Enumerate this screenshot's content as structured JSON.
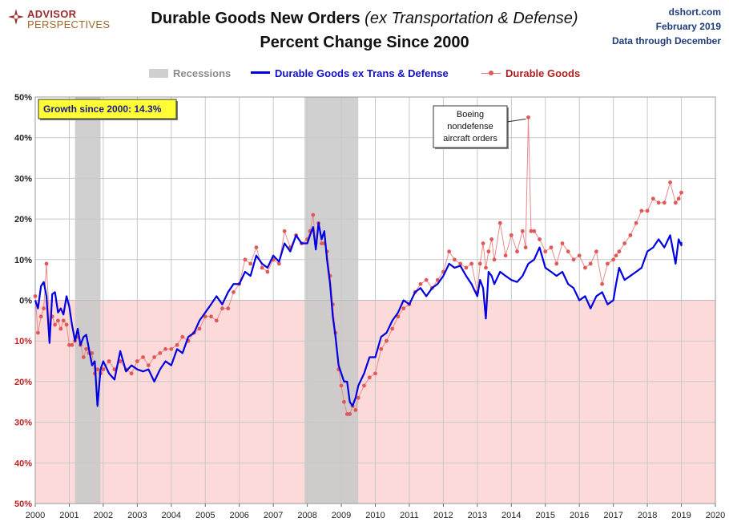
{
  "header": {
    "logo_top": "ADVISOR",
    "logo_bottom": "PERSPECTIVES",
    "title_main": "Durable Goods New Orders",
    "title_italic": "(ex Transportation & Defense)",
    "subtitle": "Percent Change Since 2000",
    "site": "dshort.com",
    "date": "February 2019",
    "data_through": "Data through December"
  },
  "legend": {
    "recessions": "Recessions",
    "series1": "Durable Goods ex Trans & Defense",
    "series2": "Durable Goods"
  },
  "colors": {
    "series1": "#0000e0",
    "series2": "#e05858",
    "recession": "#c8c8c8",
    "negative_bg": "#fddada"
  },
  "chart_data": {
    "type": "line",
    "x_unit": "year",
    "xlim": [
      2000,
      2020
    ],
    "ylim": [
      -50,
      50
    ],
    "x_ticks": [
      2000,
      2001,
      2002,
      2003,
      2004,
      2005,
      2006,
      2007,
      2008,
      2009,
      2010,
      2011,
      2012,
      2013,
      2014,
      2015,
      2016,
      2017,
      2018,
      2019,
      2020
    ],
    "x_tick_labels": [
      "2000",
      "2001",
      "2002",
      "2003",
      "2004",
      "2005",
      "2006",
      "2007",
      "2008",
      "2009",
      "2010",
      "2011",
      "2012",
      "2013",
      "2014",
      "2015",
      "2016",
      "2017",
      "2018",
      "2019",
      "2020"
    ],
    "y_ticks": [
      50,
      40,
      30,
      20,
      10,
      0,
      -10,
      -20,
      -30,
      -40,
      -50
    ],
    "y_tick_labels": [
      "50%",
      "40%",
      "30%",
      "20%",
      "10%",
      "0%",
      "10%",
      "20%",
      "30%",
      "40%",
      "50%"
    ],
    "grid": true,
    "legend_position": "top-center",
    "recessions": [
      [
        2001.17,
        2001.92
      ],
      [
        2007.92,
        2009.5
      ]
    ],
    "annotation_box": "Growth since 2000:  14.3%",
    "callout": {
      "text": [
        "Boeing",
        "nondefense",
        "aircraft orders"
      ],
      "x": 2014.5,
      "y": 45
    },
    "series": [
      {
        "name": "Durable Goods ex Trans & Defense",
        "points": [
          [
            2000.0,
            0
          ],
          [
            2000.08,
            -2
          ],
          [
            2000.17,
            3.5
          ],
          [
            2000.25,
            4.5
          ],
          [
            2000.33,
            1
          ],
          [
            2000.42,
            -10.5
          ],
          [
            2000.5,
            1.5
          ],
          [
            2000.58,
            2
          ],
          [
            2000.67,
            -3
          ],
          [
            2000.75,
            -2
          ],
          [
            2000.83,
            -3.5
          ],
          [
            2000.92,
            1
          ],
          [
            2001.0,
            -1.5
          ],
          [
            2001.08,
            -6
          ],
          [
            2001.17,
            -10
          ],
          [
            2001.25,
            -7
          ],
          [
            2001.33,
            -11
          ],
          [
            2001.42,
            -9
          ],
          [
            2001.5,
            -8.5
          ],
          [
            2001.58,
            -12
          ],
          [
            2001.67,
            -16
          ],
          [
            2001.75,
            -15
          ],
          [
            2001.83,
            -26
          ],
          [
            2001.92,
            -17
          ],
          [
            2002.0,
            -15
          ],
          [
            2002.17,
            -18
          ],
          [
            2002.33,
            -19.5
          ],
          [
            2002.5,
            -12.5
          ],
          [
            2002.67,
            -17.5
          ],
          [
            2002.83,
            -16
          ],
          [
            2003.0,
            -17
          ],
          [
            2003.17,
            -17.5
          ],
          [
            2003.33,
            -17
          ],
          [
            2003.5,
            -20
          ],
          [
            2003.67,
            -17
          ],
          [
            2003.83,
            -15
          ],
          [
            2004.0,
            -16
          ],
          [
            2004.17,
            -12
          ],
          [
            2004.33,
            -13
          ],
          [
            2004.5,
            -9
          ],
          [
            2004.67,
            -8
          ],
          [
            2004.83,
            -5
          ],
          [
            2005.0,
            -3
          ],
          [
            2005.17,
            -1
          ],
          [
            2005.33,
            1
          ],
          [
            2005.5,
            -1
          ],
          [
            2005.67,
            2
          ],
          [
            2005.83,
            4
          ],
          [
            2006.0,
            4
          ],
          [
            2006.17,
            7
          ],
          [
            2006.33,
            6
          ],
          [
            2006.5,
            11
          ],
          [
            2006.67,
            9
          ],
          [
            2006.83,
            8
          ],
          [
            2007.0,
            11
          ],
          [
            2007.17,
            9.5
          ],
          [
            2007.33,
            14
          ],
          [
            2007.5,
            12
          ],
          [
            2007.67,
            16
          ],
          [
            2007.83,
            14
          ],
          [
            2008.0,
            14
          ],
          [
            2008.08,
            16
          ],
          [
            2008.17,
            18
          ],
          [
            2008.25,
            12.5
          ],
          [
            2008.33,
            19
          ],
          [
            2008.42,
            15
          ],
          [
            2008.5,
            17
          ],
          [
            2008.58,
            10
          ],
          [
            2008.67,
            4
          ],
          [
            2008.75,
            -4
          ],
          [
            2008.83,
            -9
          ],
          [
            2008.92,
            -16
          ],
          [
            2009.0,
            -18
          ],
          [
            2009.08,
            -20
          ],
          [
            2009.17,
            -20
          ],
          [
            2009.25,
            -25
          ],
          [
            2009.33,
            -26
          ],
          [
            2009.42,
            -24
          ],
          [
            2009.5,
            -21
          ],
          [
            2009.67,
            -18
          ],
          [
            2009.83,
            -14
          ],
          [
            2010.0,
            -14
          ],
          [
            2010.17,
            -9
          ],
          [
            2010.33,
            -8
          ],
          [
            2010.5,
            -5
          ],
          [
            2010.67,
            -3
          ],
          [
            2010.83,
            0
          ],
          [
            2011.0,
            -1
          ],
          [
            2011.17,
            2
          ],
          [
            2011.33,
            3
          ],
          [
            2011.5,
            1
          ],
          [
            2011.67,
            3
          ],
          [
            2011.83,
            4
          ],
          [
            2012.0,
            6
          ],
          [
            2012.17,
            9
          ],
          [
            2012.33,
            8
          ],
          [
            2012.5,
            8.5
          ],
          [
            2012.67,
            6
          ],
          [
            2012.83,
            4
          ],
          [
            2013.0,
            1
          ],
          [
            2013.08,
            5
          ],
          [
            2013.17,
            3
          ],
          [
            2013.25,
            -4.5
          ],
          [
            2013.33,
            7
          ],
          [
            2013.42,
            6
          ],
          [
            2013.5,
            4
          ],
          [
            2013.67,
            7
          ],
          [
            2013.83,
            6
          ],
          [
            2014.0,
            5
          ],
          [
            2014.17,
            4.5
          ],
          [
            2014.33,
            6
          ],
          [
            2014.5,
            9
          ],
          [
            2014.67,
            10
          ],
          [
            2014.83,
            13
          ],
          [
            2015.0,
            8
          ],
          [
            2015.17,
            7
          ],
          [
            2015.33,
            6
          ],
          [
            2015.5,
            7
          ],
          [
            2015.67,
            4
          ],
          [
            2015.83,
            3
          ],
          [
            2016.0,
            0
          ],
          [
            2016.17,
            1
          ],
          [
            2016.33,
            -2
          ],
          [
            2016.5,
            1
          ],
          [
            2016.67,
            2
          ],
          [
            2016.83,
            -1
          ],
          [
            2017.0,
            0
          ],
          [
            2017.08,
            4
          ],
          [
            2017.17,
            8
          ],
          [
            2017.33,
            5
          ],
          [
            2017.5,
            6
          ],
          [
            2017.67,
            7
          ],
          [
            2017.83,
            8
          ],
          [
            2018.0,
            12
          ],
          [
            2018.17,
            13
          ],
          [
            2018.33,
            15
          ],
          [
            2018.5,
            13
          ],
          [
            2018.67,
            16
          ],
          [
            2018.83,
            9
          ],
          [
            2018.92,
            15
          ],
          [
            2019.0,
            13.5
          ],
          [
            2019.0,
            14.3
          ]
        ]
      },
      {
        "name": "Durable Goods",
        "points": [
          [
            2000.0,
            1
          ],
          [
            2000.08,
            -8
          ],
          [
            2000.17,
            -4
          ],
          [
            2000.25,
            -2
          ],
          [
            2000.33,
            9
          ],
          [
            2000.42,
            -6
          ],
          [
            2000.5,
            -4
          ],
          [
            2000.58,
            -6
          ],
          [
            2000.67,
            -5
          ],
          [
            2000.75,
            -7
          ],
          [
            2000.83,
            -5
          ],
          [
            2000.92,
            -6
          ],
          [
            2001.0,
            -11
          ],
          [
            2001.08,
            -11
          ],
          [
            2001.17,
            -10
          ],
          [
            2001.25,
            -9
          ],
          [
            2001.33,
            -11
          ],
          [
            2001.42,
            -14
          ],
          [
            2001.5,
            -12
          ],
          [
            2001.58,
            -13
          ],
          [
            2001.67,
            -13
          ],
          [
            2001.75,
            -18
          ],
          [
            2001.83,
            -17
          ],
          [
            2001.92,
            -18
          ],
          [
            2002.0,
            -17
          ],
          [
            2002.17,
            -15
          ],
          [
            2002.33,
            -17
          ],
          [
            2002.5,
            -15
          ],
          [
            2002.67,
            -17
          ],
          [
            2002.83,
            -18
          ],
          [
            2003.0,
            -15
          ],
          [
            2003.17,
            -14
          ],
          [
            2003.33,
            -16
          ],
          [
            2003.5,
            -14
          ],
          [
            2003.67,
            -13
          ],
          [
            2003.83,
            -12
          ],
          [
            2004.0,
            -12
          ],
          [
            2004.17,
            -11
          ],
          [
            2004.33,
            -9
          ],
          [
            2004.5,
            -10
          ],
          [
            2004.67,
            -8
          ],
          [
            2004.83,
            -7
          ],
          [
            2005.0,
            -4
          ],
          [
            2005.17,
            -4
          ],
          [
            2005.33,
            -5
          ],
          [
            2005.5,
            -2
          ],
          [
            2005.67,
            -2
          ],
          [
            2005.83,
            2
          ],
          [
            2006.0,
            4
          ],
          [
            2006.17,
            10
          ],
          [
            2006.33,
            9
          ],
          [
            2006.5,
            13
          ],
          [
            2006.67,
            8
          ],
          [
            2006.83,
            7
          ],
          [
            2007.0,
            10
          ],
          [
            2007.17,
            9
          ],
          [
            2007.33,
            17
          ],
          [
            2007.5,
            13
          ],
          [
            2007.67,
            16
          ],
          [
            2007.83,
            14
          ],
          [
            2008.0,
            15
          ],
          [
            2008.08,
            17
          ],
          [
            2008.17,
            21
          ],
          [
            2008.25,
            14
          ],
          [
            2008.33,
            19
          ],
          [
            2008.42,
            14
          ],
          [
            2008.5,
            14
          ],
          [
            2008.58,
            12
          ],
          [
            2008.67,
            6
          ],
          [
            2008.75,
            -1
          ],
          [
            2008.83,
            -8
          ],
          [
            2008.92,
            -17
          ],
          [
            2009.0,
            -21
          ],
          [
            2009.08,
            -25
          ],
          [
            2009.17,
            -28
          ],
          [
            2009.25,
            -28
          ],
          [
            2009.33,
            -26
          ],
          [
            2009.42,
            -27
          ],
          [
            2009.5,
            -24
          ],
          [
            2009.67,
            -21
          ],
          [
            2009.83,
            -19
          ],
          [
            2010.0,
            -18
          ],
          [
            2010.17,
            -12
          ],
          [
            2010.33,
            -10
          ],
          [
            2010.5,
            -7
          ],
          [
            2010.67,
            -4
          ],
          [
            2010.83,
            -2
          ],
          [
            2011.0,
            -1
          ],
          [
            2011.17,
            2
          ],
          [
            2011.33,
            4
          ],
          [
            2011.5,
            5
          ],
          [
            2011.67,
            3
          ],
          [
            2011.83,
            5
          ],
          [
            2012.0,
            7
          ],
          [
            2012.17,
            12
          ],
          [
            2012.33,
            10
          ],
          [
            2012.5,
            9
          ],
          [
            2012.67,
            8
          ],
          [
            2012.83,
            9
          ],
          [
            2013.0,
            2
          ],
          [
            2013.08,
            9
          ],
          [
            2013.17,
            14
          ],
          [
            2013.25,
            8
          ],
          [
            2013.33,
            12
          ],
          [
            2013.42,
            15
          ],
          [
            2013.5,
            10
          ],
          [
            2013.67,
            19
          ],
          [
            2013.83,
            11
          ],
          [
            2014.0,
            16
          ],
          [
            2014.17,
            12
          ],
          [
            2014.33,
            17
          ],
          [
            2014.42,
            13
          ],
          [
            2014.5,
            45
          ],
          [
            2014.58,
            17
          ],
          [
            2014.67,
            17
          ],
          [
            2014.83,
            15
          ],
          [
            2015.0,
            12
          ],
          [
            2015.17,
            13
          ],
          [
            2015.33,
            9
          ],
          [
            2015.5,
            14
          ],
          [
            2015.67,
            12
          ],
          [
            2015.83,
            10
          ],
          [
            2016.0,
            11
          ],
          [
            2016.17,
            8
          ],
          [
            2016.33,
            9
          ],
          [
            2016.5,
            12
          ],
          [
            2016.67,
            4
          ],
          [
            2016.83,
            9
          ],
          [
            2017.0,
            10
          ],
          [
            2017.08,
            11
          ],
          [
            2017.17,
            12
          ],
          [
            2017.33,
            14
          ],
          [
            2017.5,
            16
          ],
          [
            2017.67,
            19
          ],
          [
            2017.83,
            22
          ],
          [
            2018.0,
            22
          ],
          [
            2018.17,
            25
          ],
          [
            2018.33,
            24
          ],
          [
            2018.5,
            24
          ],
          [
            2018.67,
            29
          ],
          [
            2018.83,
            24
          ],
          [
            2018.92,
            25
          ],
          [
            2019.0,
            26.5
          ]
        ]
      }
    ]
  }
}
